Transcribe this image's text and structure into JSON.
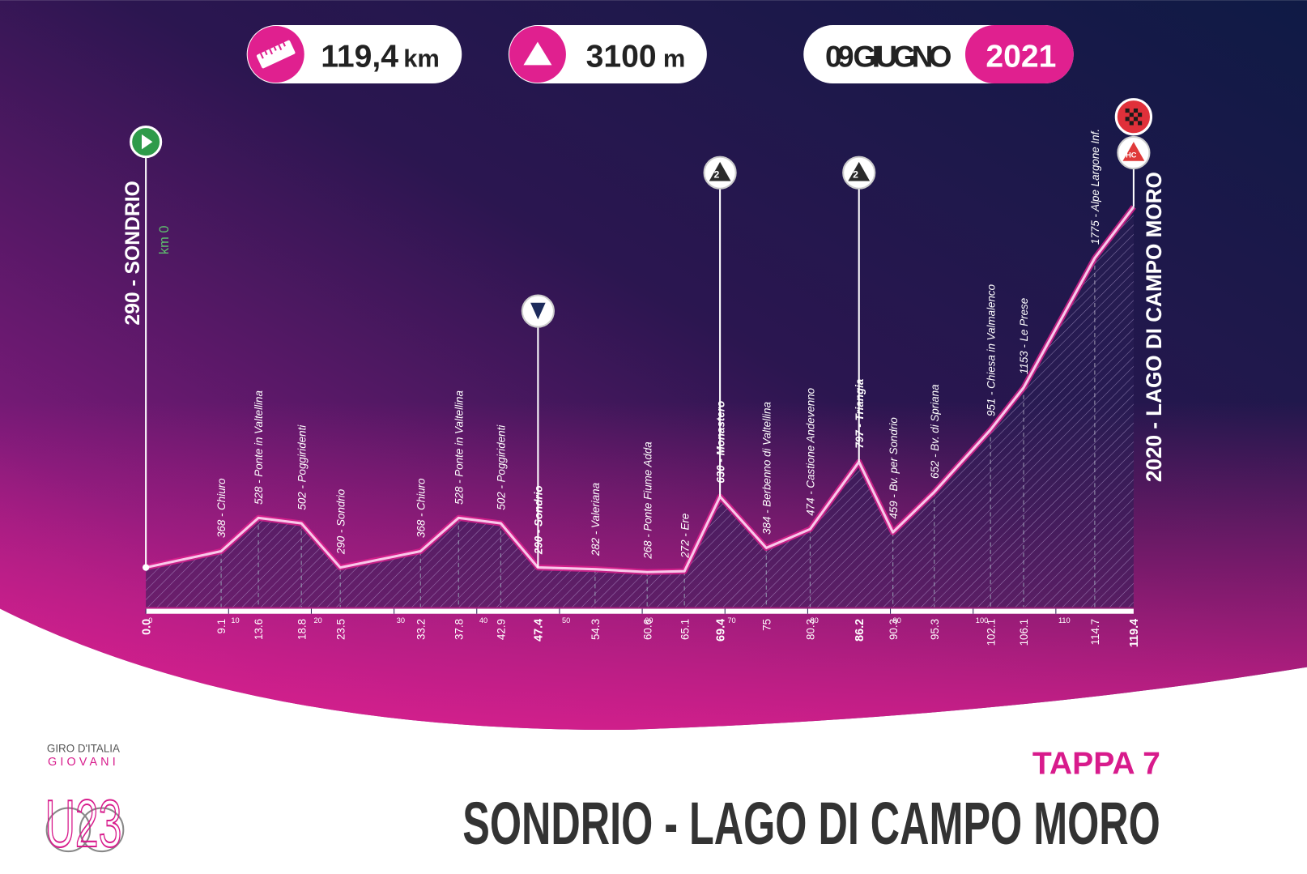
{
  "header": {
    "distance": {
      "value": "119,4",
      "unit": "km"
    },
    "climbing": {
      "value": "3100",
      "unit": "m"
    },
    "date": "09 GIUGNO",
    "year": "2021"
  },
  "chart_data": {
    "type": "area",
    "x": [
      0,
      9.1,
      13.6,
      18.8,
      23.5,
      33.2,
      37.8,
      42.9,
      47.4,
      54.3,
      60.6,
      65.1,
      69.4,
      75.0,
      80.3,
      86.2,
      90.3,
      95.3,
      102.1,
      106.1,
      114.7,
      119.4
    ],
    "values": [
      290,
      368,
      528,
      502,
      290,
      368,
      528,
      502,
      290,
      282,
      268,
      272,
      630,
      384,
      474,
      797,
      459,
      652,
      951,
      1153,
      1775,
      2020
    ],
    "value_labels": [
      "290 - SONDRIO",
      "368 - Chiuro",
      "528 - Ponte in Valtellina",
      "502 - Poggiridenti",
      "290 - Sondrio",
      "368 - Chiuro",
      "528 - Ponte in Valtellina",
      "502 - Poggiridenti",
      "290 - Sondrio",
      "282 - Valeriana",
      "268 - Ponte Fiume Adda",
      "272 - Ere",
      "630 - Monastero",
      "384 - Berbenno di Valtellina",
      "474 - Castione Andevenno",
      "797 - Triangia",
      "459 - Bv. per Sondrio",
      "652 - Bv. di Spriana",
      "951 - Chiesa in Valmalenco",
      "1153 - Le Prese",
      "1775 - Alpe Largone Inf.",
      "2020 - LAGO DI CAMPO MORO"
    ],
    "xlim": [
      0,
      119.4
    ],
    "ylim": [
      100,
      2100
    ],
    "xticks": [
      {
        "value": 0,
        "label": "0.0"
      },
      9.1,
      13.6,
      18.8,
      23.5,
      33.2,
      37.8,
      42.9,
      47.4,
      54.3,
      60.6,
      65.1,
      69.4,
      75.0,
      80.3,
      86.2,
      90.3,
      95.3,
      102.1,
      106.1,
      114.7,
      119.4
    ],
    "scale_ticks": [
      0,
      10,
      20,
      30,
      40,
      50,
      60,
      70,
      80,
      90,
      100,
      110
    ],
    "start_note": "km 0",
    "climb_categories": [
      "2",
      "2",
      "HC"
    ],
    "color": "#f9c8ea"
  },
  "footer": {
    "stage": "TAPPA 7",
    "route": "SONDRIO - LAGO DI CAMPO MORO"
  },
  "logo": {
    "brand": "GIRO D'ITALIA",
    "sub": "GIOVANI",
    "mark": "U23"
  }
}
